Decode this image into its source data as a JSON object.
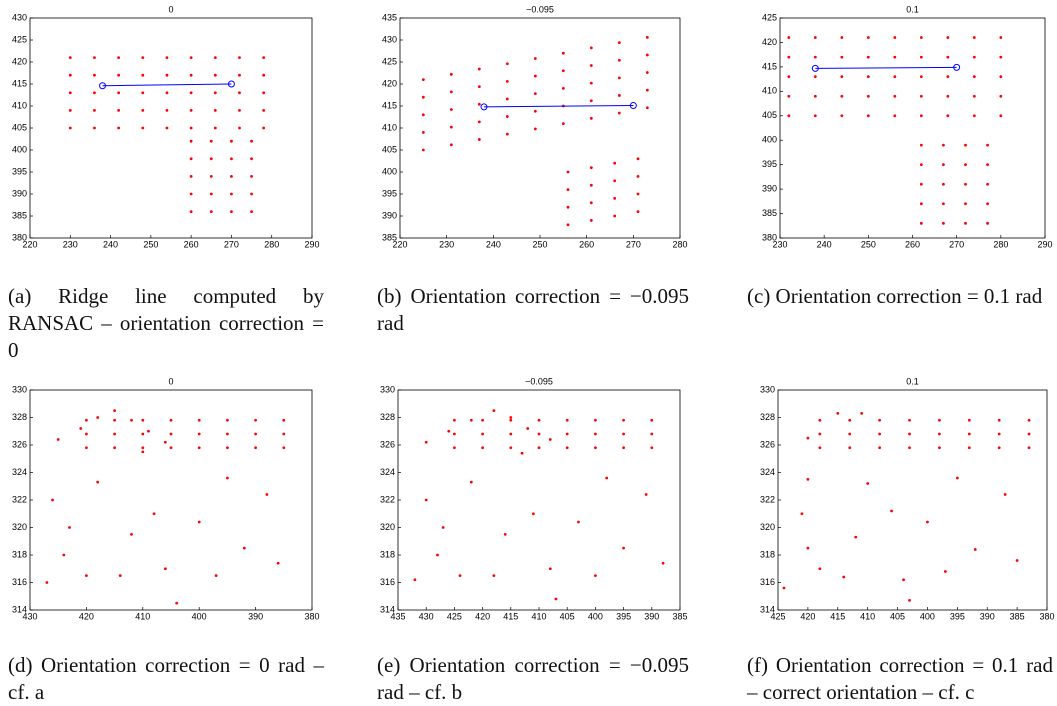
{
  "chart_data": [
    {
      "type": "scatter",
      "title": "0",
      "caption": "(a) Ridge line computed by RANSAC – orientation correction = 0",
      "xlim": [
        220,
        290
      ],
      "ylim": [
        380,
        430
      ],
      "xticks": [
        220,
        230,
        240,
        250,
        260,
        270,
        280,
        290
      ],
      "yticks": [
        380,
        385,
        390,
        395,
        400,
        405,
        410,
        415,
        420,
        425,
        430
      ],
      "series": [
        {
          "color": "#ff0000",
          "marker": "dot",
          "x": [
            230,
            236,
            242,
            248,
            254,
            260,
            266,
            272,
            278,
            230,
            236,
            242,
            248,
            254,
            260,
            266,
            272,
            278,
            230,
            236,
            242,
            248,
            254,
            260,
            266,
            272,
            278,
            230,
            236,
            242,
            248,
            254,
            260,
            266,
            272,
            278,
            230,
            236,
            242,
            248,
            254,
            260,
            266,
            272,
            278,
            260,
            265,
            270,
            275,
            260,
            265,
            270,
            275,
            260,
            265,
            270,
            275,
            260,
            265,
            270,
            275,
            260,
            265,
            270,
            275
          ],
          "values": [
            421,
            421,
            421,
            421,
            421,
            421,
            421,
            421,
            421,
            417,
            417,
            417,
            417,
            417,
            417,
            417,
            417,
            417,
            413,
            413,
            413,
            413,
            413,
            413,
            413,
            413,
            413,
            409,
            409,
            409,
            409,
            409,
            409,
            409,
            409,
            409,
            405,
            405,
            405,
            405,
            405,
            405,
            405,
            405,
            405,
            402,
            402,
            402,
            402,
            398,
            398,
            398,
            398,
            394,
            394,
            394,
            394,
            390,
            390,
            390,
            390,
            386,
            386,
            386,
            386
          ]
        },
        {
          "color": "#0000ff",
          "marker": "circle",
          "line": true,
          "x": [
            238,
            270
          ],
          "values": [
            414.6,
            415
          ]
        }
      ]
    },
    {
      "type": "scatter",
      "title": "−0.095",
      "caption": "(b) Orientation correction = −0.095 rad",
      "xlim": [
        220,
        280
      ],
      "ylim": [
        385,
        435
      ],
      "xticks": [
        220,
        230,
        240,
        250,
        260,
        270,
        280
      ],
      "yticks": [
        385,
        390,
        395,
        400,
        405,
        410,
        415,
        420,
        425,
        430,
        435
      ],
      "series": [
        {
          "color": "#ff0000",
          "marker": "dot",
          "x": [
            225,
            231,
            237,
            243,
            249,
            255,
            261,
            267,
            273,
            225,
            231,
            237,
            243,
            249,
            255,
            261,
            267,
            273,
            225,
            231,
            237,
            243,
            249,
            255,
            261,
            267,
            273,
            225,
            231,
            237,
            243,
            249,
            255,
            261,
            267,
            273,
            225,
            231,
            237,
            243,
            249,
            255,
            261,
            267,
            273,
            256,
            261,
            266,
            271,
            256,
            261,
            266,
            271,
            256,
            261,
            266,
            271,
            256,
            261,
            266,
            271
          ],
          "values": [
            421,
            422.2,
            423.4,
            424.6,
            425.8,
            427,
            428.2,
            429.4,
            430.6,
            417,
            418.2,
            419.4,
            420.6,
            421.8,
            423,
            424.2,
            425.4,
            426.6,
            413,
            414.2,
            415.4,
            416.6,
            417.8,
            419,
            420.2,
            421.4,
            422.6,
            409,
            410.2,
            411.4,
            412.6,
            413.8,
            415,
            416.2,
            417.4,
            418.6,
            405,
            406.2,
            407.4,
            408.6,
            409.8,
            411,
            412.2,
            413.4,
            414.6,
            400,
            401,
            402,
            403,
            396,
            397,
            398,
            399,
            392,
            393,
            394,
            395,
            388,
            389,
            390,
            391
          ]
        },
        {
          "color": "#0000ff",
          "marker": "circle",
          "line": true,
          "x": [
            238,
            270
          ],
          "values": [
            414.8,
            415.1
          ]
        }
      ]
    },
    {
      "type": "scatter",
      "title": "0.1",
      "caption": "(c) Orientation correction = 0.1 rad",
      "xlim": [
        230,
        290
      ],
      "ylim": [
        380,
        425
      ],
      "xticks": [
        230,
        240,
        250,
        260,
        270,
        280,
        290
      ],
      "yticks": [
        380,
        385,
        390,
        395,
        400,
        405,
        410,
        415,
        420,
        425
      ],
      "series": [
        {
          "color": "#ff0000",
          "marker": "dot",
          "x": [
            232,
            238,
            244,
            250,
            256,
            262,
            268,
            274,
            280,
            232,
            238,
            244,
            250,
            256,
            262,
            268,
            274,
            280,
            232,
            238,
            244,
            250,
            256,
            262,
            268,
            274,
            280,
            232,
            238,
            244,
            250,
            256,
            262,
            268,
            274,
            280,
            232,
            238,
            244,
            250,
            256,
            262,
            268,
            274,
            280,
            262,
            267,
            272,
            277,
            262,
            267,
            272,
            277,
            262,
            267,
            272,
            277,
            262,
            267,
            272,
            277,
            262,
            267,
            272,
            277
          ],
          "values": [
            421,
            421,
            421,
            421,
            421,
            421,
            421,
            421,
            421,
            417,
            417,
            417,
            417,
            417,
            417,
            417,
            417,
            417,
            413,
            413,
            413,
            413,
            413,
            413,
            413,
            413,
            413,
            409,
            409,
            409,
            409,
            409,
            409,
            409,
            409,
            409,
            405,
            405,
            405,
            405,
            405,
            405,
            405,
            405,
            405,
            399,
            399,
            399,
            399,
            395,
            395,
            395,
            395,
            391,
            391,
            391,
            391,
            387,
            387,
            387,
            387,
            383,
            383,
            383,
            383
          ]
        },
        {
          "color": "#0000ff",
          "marker": "circle",
          "line": true,
          "x": [
            238,
            270
          ],
          "values": [
            414.7,
            414.9
          ]
        }
      ]
    },
    {
      "type": "scatter",
      "title": "0",
      "caption": "(d) Orientation correction = 0 rad – cf. a",
      "xlim": [
        430,
        380
      ],
      "ylim": [
        314,
        330
      ],
      "xticks": [
        430,
        420,
        410,
        400,
        390,
        380
      ],
      "yticks": [
        314,
        316,
        318,
        320,
        322,
        324,
        326,
        328,
        330
      ],
      "series": [
        {
          "color": "#ff0000",
          "marker": "dot",
          "x": [
            420,
            415,
            410,
            405,
            400,
            395,
            390,
            385,
            420,
            415,
            410,
            405,
            400,
            395,
            390,
            385,
            420,
            415,
            410,
            405,
            400,
            395,
            390,
            385,
            425,
            421,
            418,
            415,
            412,
            409,
            406,
            427,
            426,
            424,
            423,
            418,
            414,
            412,
            408,
            406,
            404,
            400,
            397,
            392,
            388,
            386,
            395,
            410,
            420
          ],
          "values": [
            325.8,
            325.8,
            325.8,
            325.8,
            325.8,
            325.8,
            325.8,
            325.8,
            326.8,
            326.8,
            326.8,
            326.8,
            326.8,
            326.8,
            326.8,
            326.8,
            327.8,
            327.8,
            327.8,
            327.8,
            327.8,
            327.8,
            327.8,
            327.8,
            326.4,
            327.2,
            328,
            328.5,
            327.8,
            327,
            326.2,
            316,
            322,
            318,
            320,
            323.3,
            316.5,
            319.5,
            321,
            317,
            314.5,
            320.4,
            316.5,
            318.5,
            322.4,
            317.4,
            323.6,
            325.5,
            316.5
          ]
        }
      ]
    },
    {
      "type": "scatter",
      "title": "−0.095",
      "caption": "(e) Orientation correction = −0.095 rad – cf. b",
      "xlim": [
        435,
        385
      ],
      "ylim": [
        314,
        330
      ],
      "xticks": [
        435,
        430,
        425,
        420,
        415,
        410,
        405,
        400,
        395,
        390,
        385
      ],
      "yticks": [
        314,
        316,
        318,
        320,
        322,
        324,
        326,
        328,
        330
      ],
      "series": [
        {
          "color": "#ff0000",
          "marker": "dot",
          "x": [
            425,
            420,
            415,
            410,
            405,
            400,
            395,
            390,
            425,
            420,
            415,
            410,
            405,
            400,
            395,
            390,
            425,
            420,
            415,
            410,
            405,
            400,
            395,
            390,
            430,
            426,
            422,
            418,
            415,
            412,
            408,
            432,
            430,
            428,
            427,
            422,
            418,
            416,
            411,
            408,
            407,
            403,
            400,
            395,
            391,
            388,
            398,
            413,
            424
          ],
          "values": [
            325.8,
            325.8,
            325.8,
            325.8,
            325.8,
            325.8,
            325.8,
            325.8,
            326.8,
            326.8,
            326.8,
            326.8,
            326.8,
            326.8,
            326.8,
            326.8,
            327.8,
            327.8,
            327.8,
            327.8,
            327.8,
            327.8,
            327.8,
            327.8,
            326.2,
            327,
            327.8,
            328.5,
            328,
            327.2,
            326.4,
            316.2,
            322,
            318,
            320,
            323.3,
            316.5,
            319.5,
            321,
            317,
            314.8,
            320.4,
            316.5,
            318.5,
            322.4,
            317.4,
            323.6,
            325.4,
            316.5
          ]
        }
      ]
    },
    {
      "type": "scatter",
      "title": "0.1",
      "caption": "(f) Orientation correction = 0.1 rad – correct orientation – cf. c",
      "xlim": [
        425,
        380
      ],
      "ylim": [
        314,
        330
      ],
      "xticks": [
        425,
        420,
        415,
        410,
        405,
        400,
        395,
        390,
        385,
        380
      ],
      "yticks": [
        314,
        316,
        318,
        320,
        322,
        324,
        326,
        328,
        330
      ],
      "series": [
        {
          "color": "#ff0000",
          "marker": "dot",
          "x": [
            418,
            413,
            408,
            403,
            398,
            393,
            388,
            383,
            418,
            413,
            408,
            403,
            398,
            393,
            388,
            383,
            418,
            413,
            408,
            403,
            398,
            393,
            388,
            383,
            420,
            415,
            411,
            424,
            421,
            420,
            420,
            414,
            412,
            406,
            404,
            403,
            400,
            397,
            392,
            387,
            385,
            395,
            410,
            418
          ],
          "values": [
            325.8,
            325.8,
            325.8,
            325.8,
            325.8,
            325.8,
            325.8,
            325.8,
            326.8,
            326.8,
            326.8,
            326.8,
            326.8,
            326.8,
            326.8,
            326.8,
            327.8,
            327.8,
            327.8,
            327.8,
            327.8,
            327.8,
            327.8,
            327.8,
            326.5,
            328.3,
            328.3,
            315.6,
            321,
            318.5,
            323.5,
            316.4,
            319.3,
            321.2,
            316.2,
            314.7,
            320.4,
            316.8,
            318.4,
            322.4,
            317.6,
            323.6,
            323.2,
            317
          ]
        }
      ]
    }
  ]
}
